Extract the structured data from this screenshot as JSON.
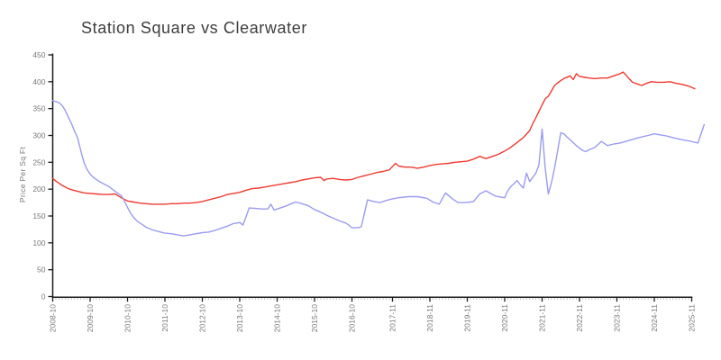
{
  "chart": {
    "title": "Station Square vs Clearwater",
    "ylabel": "Price Per Sq Ft"
  },
  "colors": {
    "axis": "#1a1a1a",
    "tick_label": "#777777",
    "minor_tick": "#b8b8b8",
    "title_text": "#3d3d3d",
    "series_red": "#ee3a30",
    "series_blue": "#9b9bf0"
  },
  "chart_data": {
    "type": "line",
    "title": "Station Square vs Clearwater",
    "xlabel": "",
    "ylabel": "Price Per Sq Ft",
    "ylim": [
      0,
      450
    ],
    "grid": false,
    "legend_position": "none",
    "y_ticks": [
      0,
      50,
      100,
      150,
      200,
      250,
      300,
      350,
      400,
      450
    ],
    "x_tick_labels": [
      "2008-10",
      "2009-10",
      "2010-10",
      "2011-10",
      "2012-10",
      "2013-10",
      "2014-10",
      "2015-10",
      "2016-10",
      "2017-11",
      "2018-11",
      "2019-11",
      "2020-11",
      "2021-11",
      "2022-11",
      "2023-11",
      "2024-11",
      "2025-11"
    ],
    "x_minor_tick_unit": "month",
    "series": [
      {
        "name": "Station Square",
        "color": "#ee3a30",
        "points": [
          [
            "2008-10",
            220
          ],
          [
            "2008-11",
            215
          ],
          [
            "2008-12",
            211
          ],
          [
            "2009-01",
            207
          ],
          [
            "2009-02",
            204
          ],
          [
            "2009-03",
            201
          ],
          [
            "2009-04",
            199
          ],
          [
            "2009-06",
            196
          ],
          [
            "2009-08",
            193
          ],
          [
            "2009-10",
            192
          ],
          [
            "2009-12",
            191
          ],
          [
            "2010-02",
            190
          ],
          [
            "2010-04",
            190
          ],
          [
            "2010-06",
            191
          ],
          [
            "2010-08",
            184
          ],
          [
            "2010-10",
            178
          ],
          [
            "2010-12",
            176
          ],
          [
            "2011-02",
            174
          ],
          [
            "2011-04",
            173
          ],
          [
            "2011-06",
            172
          ],
          [
            "2011-08",
            172
          ],
          [
            "2011-10",
            172
          ],
          [
            "2011-12",
            173
          ],
          [
            "2012-02",
            173
          ],
          [
            "2012-04",
            174
          ],
          [
            "2012-06",
            174
          ],
          [
            "2012-08",
            175
          ],
          [
            "2012-10",
            177
          ],
          [
            "2012-12",
            180
          ],
          [
            "2013-02",
            183
          ],
          [
            "2013-04",
            186
          ],
          [
            "2013-06",
            190
          ],
          [
            "2013-08",
            192
          ],
          [
            "2013-10",
            194
          ],
          [
            "2013-12",
            198
          ],
          [
            "2014-02",
            201
          ],
          [
            "2014-04",
            202
          ],
          [
            "2014-06",
            204
          ],
          [
            "2014-08",
            206
          ],
          [
            "2014-10",
            208
          ],
          [
            "2014-12",
            210
          ],
          [
            "2015-02",
            212
          ],
          [
            "2015-04",
            214
          ],
          [
            "2015-06",
            217
          ],
          [
            "2015-08",
            219
          ],
          [
            "2015-10",
            221
          ],
          [
            "2015-12",
            222
          ],
          [
            "2016-01",
            216
          ],
          [
            "2016-02",
            219
          ],
          [
            "2016-04",
            220
          ],
          [
            "2016-06",
            218
          ],
          [
            "2016-08",
            217
          ],
          [
            "2016-10",
            218
          ],
          [
            "2016-12",
            222
          ],
          [
            "2017-02",
            225
          ],
          [
            "2017-04",
            228
          ],
          [
            "2017-06",
            231
          ],
          [
            "2017-08",
            233
          ],
          [
            "2017-10",
            236
          ],
          [
            "2017-12",
            248
          ],
          [
            "2018-01",
            243
          ],
          [
            "2018-03",
            241
          ],
          [
            "2018-05",
            241
          ],
          [
            "2018-07",
            239
          ],
          [
            "2018-09",
            241
          ],
          [
            "2018-11",
            244
          ],
          [
            "2019-01",
            246
          ],
          [
            "2019-03",
            247
          ],
          [
            "2019-05",
            248
          ],
          [
            "2019-07",
            250
          ],
          [
            "2019-09",
            251
          ],
          [
            "2019-11",
            252
          ],
          [
            "2020-01",
            256
          ],
          [
            "2020-03",
            261
          ],
          [
            "2020-05",
            257
          ],
          [
            "2020-07",
            261
          ],
          [
            "2020-09",
            265
          ],
          [
            "2020-11",
            271
          ],
          [
            "2021-01",
            278
          ],
          [
            "2021-03",
            287
          ],
          [
            "2021-05",
            296
          ],
          [
            "2021-07",
            309
          ],
          [
            "2021-08",
            322
          ],
          [
            "2021-09",
            333
          ],
          [
            "2021-10",
            345
          ],
          [
            "2021-11",
            357
          ],
          [
            "2021-12",
            368
          ],
          [
            "2022-01",
            373
          ],
          [
            "2022-02",
            383
          ],
          [
            "2022-03",
            393
          ],
          [
            "2022-04",
            398
          ],
          [
            "2022-05",
            402
          ],
          [
            "2022-06",
            406
          ],
          [
            "2022-08",
            411
          ],
          [
            "2022-09",
            404
          ],
          [
            "2022-10",
            415
          ],
          [
            "2022-11",
            410
          ],
          [
            "2022-12",
            409
          ],
          [
            "2023-02",
            407
          ],
          [
            "2023-04",
            406
          ],
          [
            "2023-06",
            407
          ],
          [
            "2023-08",
            407
          ],
          [
            "2023-10",
            411
          ],
          [
            "2023-12",
            415
          ],
          [
            "2024-01",
            418
          ],
          [
            "2024-02",
            412
          ],
          [
            "2024-03",
            405
          ],
          [
            "2024-04",
            399
          ],
          [
            "2024-06",
            395
          ],
          [
            "2024-07",
            393
          ],
          [
            "2024-08",
            396
          ],
          [
            "2024-10",
            400
          ],
          [
            "2024-12",
            399
          ],
          [
            "2025-02",
            399
          ],
          [
            "2025-04",
            400
          ],
          [
            "2025-06",
            397
          ],
          [
            "2025-08",
            395
          ],
          [
            "2025-10",
            392
          ],
          [
            "2025-12",
            387
          ]
        ]
      },
      {
        "name": "Clearwater",
        "color": "#9b9bf0",
        "points": [
          [
            "2008-10",
            365
          ],
          [
            "2008-11",
            363
          ],
          [
            "2008-12",
            361
          ],
          [
            "2009-01",
            356
          ],
          [
            "2009-02",
            347
          ],
          [
            "2009-03",
            334
          ],
          [
            "2009-04",
            322
          ],
          [
            "2009-05",
            308
          ],
          [
            "2009-06",
            295
          ],
          [
            "2009-07",
            272
          ],
          [
            "2009-08",
            250
          ],
          [
            "2009-09",
            237
          ],
          [
            "2009-10",
            228
          ],
          [
            "2009-11",
            222
          ],
          [
            "2009-12",
            218
          ],
          [
            "2010-01",
            214
          ],
          [
            "2010-02",
            211
          ],
          [
            "2010-04",
            205
          ],
          [
            "2010-06",
            196
          ],
          [
            "2010-08",
            188
          ],
          [
            "2010-09",
            178
          ],
          [
            "2010-10",
            166
          ],
          [
            "2010-11",
            155
          ],
          [
            "2010-12",
            147
          ],
          [
            "2011-01",
            141
          ],
          [
            "2011-02",
            137
          ],
          [
            "2011-03",
            133
          ],
          [
            "2011-04",
            129
          ],
          [
            "2011-06",
            124
          ],
          [
            "2011-08",
            121
          ],
          [
            "2011-10",
            118
          ],
          [
            "2011-12",
            117
          ],
          [
            "2012-02",
            115
          ],
          [
            "2012-04",
            113
          ],
          [
            "2012-06",
            115
          ],
          [
            "2012-08",
            117
          ],
          [
            "2012-10",
            119
          ],
          [
            "2012-12",
            120
          ],
          [
            "2013-02",
            123
          ],
          [
            "2013-04",
            127
          ],
          [
            "2013-06",
            131
          ],
          [
            "2013-08",
            136
          ],
          [
            "2013-10",
            138
          ],
          [
            "2013-11",
            133
          ],
          [
            "2013-12",
            148
          ],
          [
            "2014-01",
            165
          ],
          [
            "2014-03",
            164
          ],
          [
            "2014-05",
            163
          ],
          [
            "2014-07",
            163
          ],
          [
            "2014-08",
            172
          ],
          [
            "2014-09",
            161
          ],
          [
            "2014-11",
            165
          ],
          [
            "2015-01",
            169
          ],
          [
            "2015-03",
            174
          ],
          [
            "2015-04",
            176
          ],
          [
            "2015-06",
            173
          ],
          [
            "2015-08",
            169
          ],
          [
            "2015-10",
            162
          ],
          [
            "2015-12",
            157
          ],
          [
            "2016-02",
            151
          ],
          [
            "2016-04",
            146
          ],
          [
            "2016-06",
            141
          ],
          [
            "2016-08",
            137
          ],
          [
            "2016-09",
            133
          ],
          [
            "2016-10",
            128
          ],
          [
            "2016-12",
            128
          ],
          [
            "2017-01",
            130
          ],
          [
            "2017-03",
            180
          ],
          [
            "2017-05",
            177
          ],
          [
            "2017-07",
            175
          ],
          [
            "2017-09",
            179
          ],
          [
            "2017-11",
            182
          ],
          [
            "2018-01",
            184
          ],
          [
            "2018-04",
            186
          ],
          [
            "2018-07",
            186
          ],
          [
            "2018-10",
            183
          ],
          [
            "2018-12",
            176
          ],
          [
            "2019-02",
            172
          ],
          [
            "2019-04",
            193
          ],
          [
            "2019-06",
            183
          ],
          [
            "2019-08",
            175
          ],
          [
            "2019-10",
            175
          ],
          [
            "2019-12",
            176
          ],
          [
            "2020-01",
            177
          ],
          [
            "2020-03",
            191
          ],
          [
            "2020-05",
            197
          ],
          [
            "2020-08",
            187
          ],
          [
            "2020-11",
            184
          ],
          [
            "2020-12",
            197
          ],
          [
            "2021-01",
            205
          ],
          [
            "2021-03",
            216
          ],
          [
            "2021-04",
            208
          ],
          [
            "2021-05",
            202
          ],
          [
            "2021-06",
            230
          ],
          [
            "2021-07",
            214
          ],
          [
            "2021-08",
            222
          ],
          [
            "2021-09",
            230
          ],
          [
            "2021-10",
            245
          ],
          [
            "2021-11",
            312
          ],
          [
            "2021-12",
            240
          ],
          [
            "2022-01",
            191
          ],
          [
            "2022-02",
            212
          ],
          [
            "2022-03",
            239
          ],
          [
            "2022-04",
            272
          ],
          [
            "2022-05",
            305
          ],
          [
            "2022-06",
            303
          ],
          [
            "2022-07",
            297
          ],
          [
            "2022-08",
            292
          ],
          [
            "2022-10",
            281
          ],
          [
            "2022-12",
            272
          ],
          [
            "2023-01",
            270
          ],
          [
            "2023-02",
            273
          ],
          [
            "2023-04",
            278
          ],
          [
            "2023-06",
            289
          ],
          [
            "2023-08",
            281
          ],
          [
            "2023-10",
            284
          ],
          [
            "2023-12",
            286
          ],
          [
            "2024-03",
            291
          ],
          [
            "2024-06",
            296
          ],
          [
            "2024-09",
            300
          ],
          [
            "2024-11",
            303
          ],
          [
            "2025-01",
            301
          ],
          [
            "2025-03",
            299
          ],
          [
            "2025-05",
            296
          ],
          [
            "2025-08",
            292
          ],
          [
            "2025-10",
            290
          ],
          [
            "2026-01",
            286
          ],
          [
            "2026-03",
            320
          ]
        ]
      }
    ]
  }
}
